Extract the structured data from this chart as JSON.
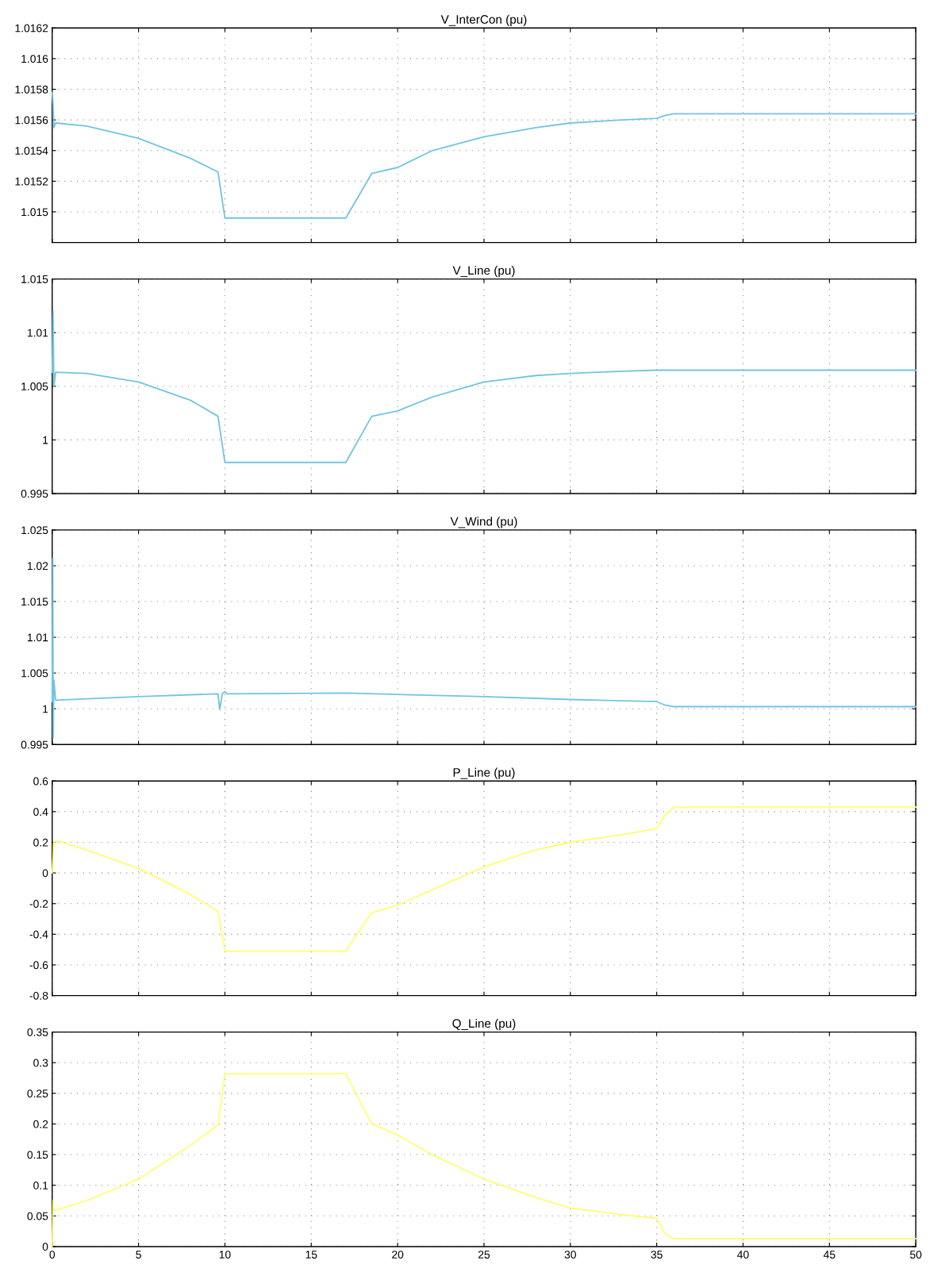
{
  "chart_data": [
    {
      "type": "line",
      "title": "V_InterCon (pu)",
      "x": [
        0,
        0.05,
        0.1,
        0.2,
        2,
        5,
        8,
        9.6,
        10,
        10.2,
        17,
        18.5,
        20,
        22,
        25,
        28,
        30,
        33,
        35,
        35.5,
        36,
        40,
        50
      ],
      "series": [
        {
          "color": "#72c4e2",
          "values": [
            1.01578,
            1.0157,
            1.01555,
            1.01558,
            1.01556,
            1.01548,
            1.01535,
            1.01526,
            1.01496,
            1.01496,
            1.01496,
            1.01525,
            1.01529,
            1.0154,
            1.01549,
            1.01555,
            1.01558,
            1.0156,
            1.01561,
            1.01563,
            1.01564,
            1.01564,
            1.01564
          ]
        }
      ],
      "xlim": [
        0,
        50
      ],
      "xticks": [
        0,
        5,
        10,
        15,
        20,
        25,
        30,
        35,
        40,
        45,
        50
      ],
      "ylim": [
        1.0148,
        1.0162
      ],
      "yticks": [
        1.015,
        1.0152,
        1.0154,
        1.0156,
        1.0158,
        1.016,
        1.0162
      ],
      "grid": true,
      "tick_labels": "y"
    },
    {
      "type": "line",
      "title": "V_Line (pu)",
      "x": [
        0,
        0.05,
        0.1,
        0.2,
        2,
        5,
        8,
        9.6,
        10,
        10.2,
        17,
        18.5,
        20,
        22,
        25,
        28,
        30,
        33,
        35,
        40,
        50
      ],
      "series": [
        {
          "color": "#72c4e2",
          "values": [
            1.0063,
            1.012,
            1.005,
            1.0063,
            1.0062,
            1.0054,
            1.0037,
            1.0022,
            0.9979,
            0.9979,
            0.9979,
            1.0022,
            1.0027,
            1.004,
            1.0054,
            1.006,
            1.0062,
            1.0064,
            1.0065,
            1.0065,
            1.0065
          ]
        }
      ],
      "xlim": [
        0,
        50
      ],
      "xticks": [
        0,
        5,
        10,
        15,
        20,
        25,
        30,
        35,
        40,
        45,
        50
      ],
      "ylim": [
        0.995,
        1.015
      ],
      "yticks": [
        0.995,
        1,
        1.005,
        1.01,
        1.015
      ],
      "grid": true,
      "tick_labels": "y"
    },
    {
      "type": "line",
      "title": "V_Wind (pu)",
      "x": [
        0,
        0.03,
        0.06,
        0.1,
        0.2,
        5,
        9.6,
        9.7,
        9.85,
        10,
        10.1,
        17,
        20,
        25,
        30,
        35,
        35.5,
        36,
        50
      ],
      "series": [
        {
          "color": "#72c4e2",
          "values": [
            1.001,
            1.021,
            0.996,
            1.004,
            1.0012,
            1.0017,
            1.0021,
            0.9999,
            1.0021,
            1.0024,
            1.0021,
            1.0022,
            1.002,
            1.0017,
            1.0013,
            1.001,
            1.0005,
            1.0003,
            1.0003
          ]
        }
      ],
      "xlim": [
        0,
        50
      ],
      "xticks": [
        0,
        5,
        10,
        15,
        20,
        25,
        30,
        35,
        40,
        45,
        50
      ],
      "ylim": [
        0.995,
        1.025
      ],
      "yticks": [
        0.995,
        1,
        1.005,
        1.01,
        1.015,
        1.02,
        1.025
      ],
      "grid": true,
      "tick_labels": "y"
    },
    {
      "type": "line",
      "title": "P_Line (pu)",
      "x": [
        0,
        0.1,
        0.3,
        2,
        5,
        8,
        9.6,
        10,
        10.2,
        17,
        18.5,
        20,
        22,
        25,
        28,
        30,
        33,
        35,
        35.5,
        36,
        40,
        50
      ],
      "series": [
        {
          "color": "#ffff70",
          "values": [
            0,
            0.2,
            0.21,
            0.15,
            0.03,
            -0.14,
            -0.25,
            -0.51,
            -0.51,
            -0.51,
            -0.26,
            -0.21,
            -0.11,
            0.04,
            0.15,
            0.2,
            0.25,
            0.29,
            0.38,
            0.43,
            0.43,
            0.43
          ]
        }
      ],
      "xlim": [
        0,
        50
      ],
      "xticks": [
        0,
        5,
        10,
        15,
        20,
        25,
        30,
        35,
        40,
        45,
        50
      ],
      "ylim": [
        -0.8,
        0.6
      ],
      "yticks": [
        -0.8,
        -0.6,
        -0.4,
        -0.2,
        0,
        0.2,
        0.4,
        0.6
      ],
      "grid": true,
      "tick_labels": "y"
    },
    {
      "type": "line",
      "title": "Q_Line (pu)",
      "x": [
        0,
        0.05,
        0.1,
        0.3,
        2,
        5,
        8,
        9.6,
        10,
        10.2,
        17,
        18.5,
        20,
        22,
        25,
        28,
        30,
        33,
        35,
        35.5,
        36,
        40,
        50
      ],
      "series": [
        {
          "color": "#ffff70",
          "values": [
            0,
            0.075,
            0.06,
            0.06,
            0.075,
            0.11,
            0.165,
            0.198,
            0.282,
            0.282,
            0.282,
            0.2,
            0.182,
            0.15,
            0.11,
            0.08,
            0.063,
            0.052,
            0.046,
            0.02,
            0.013,
            0.013,
            0.013
          ]
        }
      ],
      "xlim": [
        0,
        50
      ],
      "xticks": [
        0,
        5,
        10,
        15,
        20,
        25,
        30,
        35,
        40,
        45,
        50
      ],
      "ylim": [
        0,
        0.35
      ],
      "yticks": [
        0,
        0.05,
        0.1,
        0.15,
        0.2,
        0.25,
        0.3,
        0.35
      ],
      "grid": true
    }
  ]
}
